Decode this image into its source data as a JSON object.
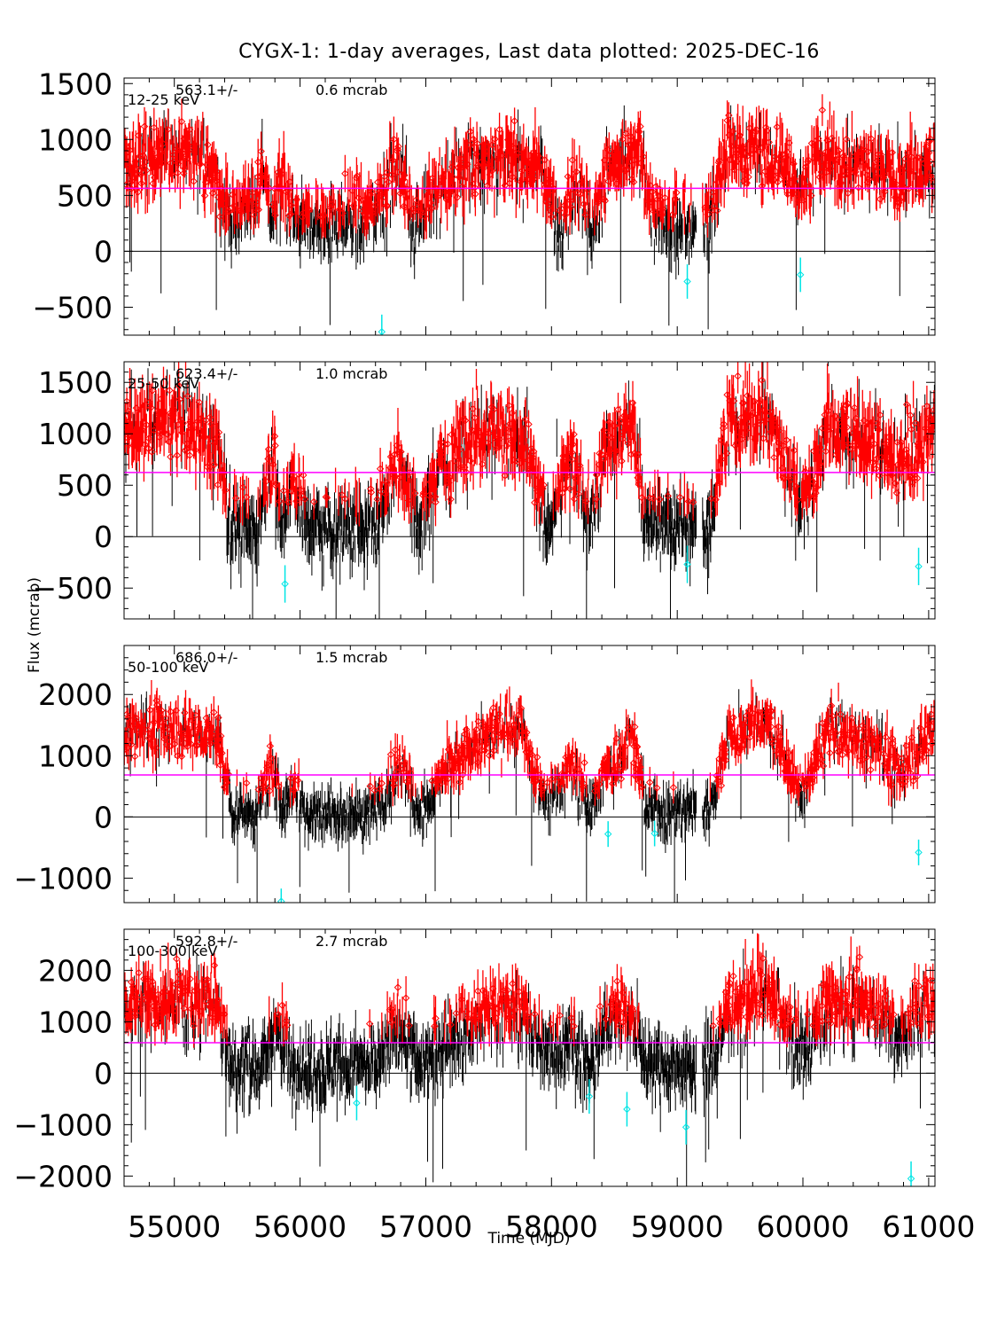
{
  "title": "CYGX-1:  1-day averages,  Last data plotted: 2025-DEC-16",
  "colors": {
    "background": "#ffffff",
    "axis": "#000000",
    "significant_points": "#ff0000",
    "low_points": "#000000",
    "negative_outliers": "#00e5e5",
    "mean_line": "#ff00ff"
  },
  "chart_data": {
    "type": "scatter",
    "xlabel": "Time (MJD)",
    "ylabel": "Flux (mcrab)",
    "xlim": [
      54600,
      61050
    ],
    "xticks": [
      55000,
      56000,
      57000,
      58000,
      59000,
      60000,
      61000
    ],
    "xtick_labels": [
      "55000",
      "56000",
      "57000",
      "58000",
      "59000",
      "60000",
      "61000"
    ],
    "grid": false,
    "panels": [
      {
        "band": "12-25 keV",
        "mean_text": "563.1+/-",
        "err_text": "0.6 mcrab",
        "mean": 563.1,
        "ylim": [
          -750,
          1550
        ],
        "yticks": [
          -500,
          0,
          500,
          1000,
          1500
        ],
        "ytick_labels": [
          "−500",
          "0",
          "500",
          "1000",
          "1500"
        ],
        "spread": 220,
        "red_threshold": 300,
        "profile": [
          [
            54600,
            760
          ],
          [
            55050,
            900
          ],
          [
            55250,
            830
          ],
          [
            55450,
            350
          ],
          [
            55550,
            330
          ],
          [
            55700,
            640
          ],
          [
            55780,
            300
          ],
          [
            55850,
            620
          ],
          [
            55950,
            260
          ],
          [
            56200,
            280
          ],
          [
            56350,
            340
          ],
          [
            56500,
            320
          ],
          [
            56650,
            500
          ],
          [
            56800,
            760
          ],
          [
            56900,
            230
          ],
          [
            57000,
            450
          ],
          [
            57150,
            540
          ],
          [
            57300,
            790
          ],
          [
            57500,
            820
          ],
          [
            57700,
            760
          ],
          [
            57900,
            820
          ],
          [
            58050,
            240
          ],
          [
            58200,
            640
          ],
          [
            58330,
            220
          ],
          [
            58450,
            760
          ],
          [
            58700,
            850
          ],
          [
            58800,
            340
          ],
          [
            58950,
            240
          ],
          [
            59250,
            260
          ],
          [
            59400,
            950
          ],
          [
            59650,
            860
          ],
          [
            59850,
            780
          ],
          [
            60000,
            560
          ],
          [
            60150,
            900
          ],
          [
            60350,
            720
          ],
          [
            60550,
            800
          ],
          [
            60750,
            650
          ],
          [
            61050,
            780
          ]
        ],
        "outliers": [
          [
            56650,
            -720
          ],
          [
            59080,
            -270
          ],
          [
            59980,
            -210
          ]
        ]
      },
      {
        "band": "25-50 keV",
        "mean_text": "623.4+/-",
        "err_text": "1.0 mcrab",
        "mean": 623.4,
        "ylim": [
          -800,
          1700
        ],
        "yticks": [
          -500,
          0,
          500,
          1000,
          1500
        ],
        "ytick_labels": [
          "−500",
          "0",
          "500",
          "1000",
          "1500"
        ],
        "spread": 260,
        "red_threshold": 330,
        "profile": [
          [
            54600,
            1050
          ],
          [
            55050,
            1180
          ],
          [
            55350,
            900
          ],
          [
            55450,
            120
          ],
          [
            55650,
            80
          ],
          [
            55780,
            820
          ],
          [
            55850,
            180
          ],
          [
            55950,
            560
          ],
          [
            56050,
            100
          ],
          [
            56350,
            120
          ],
          [
            56550,
            80
          ],
          [
            56800,
            760
          ],
          [
            56950,
            50
          ],
          [
            57050,
            600
          ],
          [
            57200,
            700
          ],
          [
            57300,
            950
          ],
          [
            57500,
            1050
          ],
          [
            57800,
            900
          ],
          [
            57950,
            100
          ],
          [
            58150,
            800
          ],
          [
            58300,
            200
          ],
          [
            58450,
            900
          ],
          [
            58650,
            1100
          ],
          [
            58750,
            150
          ],
          [
            58950,
            100
          ],
          [
            59250,
            100
          ],
          [
            59400,
            1100
          ],
          [
            59700,
            1200
          ],
          [
            59850,
            750
          ],
          [
            60000,
            300
          ],
          [
            60200,
            1050
          ],
          [
            60400,
            1000
          ],
          [
            60600,
            900
          ],
          [
            60750,
            650
          ],
          [
            61050,
            1100
          ]
        ],
        "outliers": [
          [
            55880,
            -460
          ],
          [
            59080,
            -270
          ],
          [
            60920,
            -290
          ]
        ]
      },
      {
        "band": "50-100 keV",
        "mean_text": "686.0+/-",
        "err_text": "1.5 mcrab",
        "mean": 686.0,
        "ylim": [
          -1400,
          2800
        ],
        "yticks": [
          -1000,
          0,
          1000,
          2000
        ],
        "ytick_labels": [
          "−1000",
          "0",
          "1000",
          "2000"
        ],
        "spread": 300,
        "red_threshold": 420,
        "profile": [
          [
            54600,
            1450
          ],
          [
            55050,
            1450
          ],
          [
            55350,
            1350
          ],
          [
            55450,
            150
          ],
          [
            55650,
            100
          ],
          [
            55780,
            900
          ],
          [
            55850,
            150
          ],
          [
            55950,
            500
          ],
          [
            56050,
            50
          ],
          [
            56350,
            50
          ],
          [
            56600,
            100
          ],
          [
            56800,
            900
          ],
          [
            56950,
            50
          ],
          [
            57150,
            700
          ],
          [
            57300,
            1000
          ],
          [
            57550,
            1450
          ],
          [
            57750,
            1500
          ],
          [
            57950,
            150
          ],
          [
            58150,
            800
          ],
          [
            58300,
            150
          ],
          [
            58500,
            900
          ],
          [
            58650,
            1300
          ],
          [
            58750,
            150
          ],
          [
            58950,
            100
          ],
          [
            59250,
            100
          ],
          [
            59400,
            1300
          ],
          [
            59700,
            1600
          ],
          [
            59850,
            1000
          ],
          [
            60000,
            300
          ],
          [
            60200,
            1500
          ],
          [
            60400,
            1300
          ],
          [
            60600,
            1200
          ],
          [
            60750,
            700
          ],
          [
            61050,
            1500
          ]
        ],
        "outliers": [
          [
            55850,
            -1380
          ],
          [
            58450,
            -280
          ],
          [
            58820,
            -270
          ],
          [
            60920,
            -580
          ]
        ]
      },
      {
        "band": "100-300 keV",
        "mean_text": "592.8+/-",
        "err_text": "2.7 mcrab",
        "mean": 592.8,
        "ylim": [
          -2200,
          2800
        ],
        "yticks": [
          -2000,
          -1000,
          0,
          1000,
          2000
        ],
        "ytick_labels": [
          "−2000",
          "−1000",
          "0",
          "1000",
          "2000"
        ],
        "spread": 480,
        "red_threshold": 900,
        "profile": [
          [
            54600,
            1400
          ],
          [
            55050,
            1400
          ],
          [
            55350,
            1400
          ],
          [
            55450,
            100
          ],
          [
            55700,
            200
          ],
          [
            55800,
            900
          ],
          [
            55950,
            200
          ],
          [
            56050,
            100
          ],
          [
            56400,
            100
          ],
          [
            56600,
            150
          ],
          [
            56800,
            1000
          ],
          [
            56950,
            100
          ],
          [
            57150,
            650
          ],
          [
            57300,
            800
          ],
          [
            57550,
            1300
          ],
          [
            57800,
            1100
          ],
          [
            57950,
            300
          ],
          [
            58150,
            800
          ],
          [
            58300,
            100
          ],
          [
            58500,
            1300
          ],
          [
            58650,
            1000
          ],
          [
            58750,
            250
          ],
          [
            58950,
            100
          ],
          [
            59250,
            100
          ],
          [
            59400,
            1200
          ],
          [
            59700,
            1700
          ],
          [
            59850,
            900
          ],
          [
            60000,
            400
          ],
          [
            60200,
            1400
          ],
          [
            60400,
            1400
          ],
          [
            60600,
            1300
          ],
          [
            60750,
            800
          ],
          [
            61050,
            1400
          ]
        ],
        "outliers": [
          [
            56450,
            -580
          ],
          [
            58300,
            -450
          ],
          [
            58600,
            -700
          ],
          [
            59070,
            -1050
          ],
          [
            60860,
            -2050
          ]
        ]
      }
    ]
  }
}
